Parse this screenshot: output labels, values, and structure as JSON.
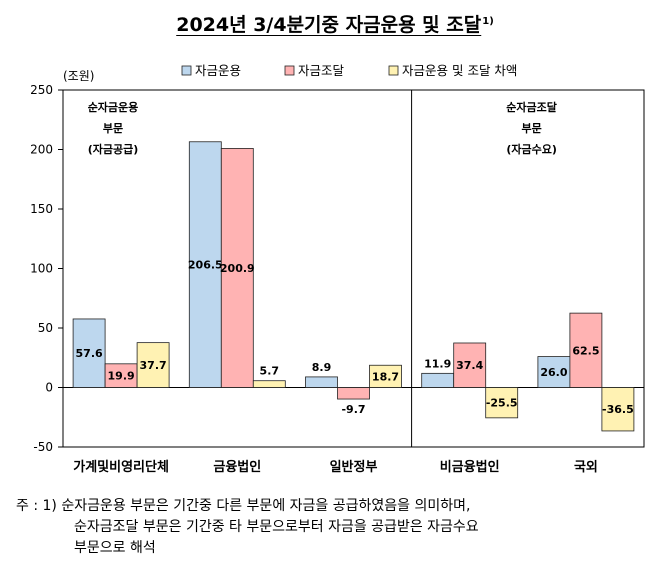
{
  "title": "2024년 3/4분기중 자금운용 및 조달",
  "title_sup": "1)",
  "chart_data": {
    "type": "bar",
    "categories": [
      "가계및비영리단체",
      "금융법인",
      "일반정부",
      "비금융법인",
      "국외"
    ],
    "series": [
      {
        "name": "자금운용",
        "values": [
          57.6,
          206.5,
          8.9,
          11.9,
          26.0
        ],
        "color": "#bdd7ee"
      },
      {
        "name": "자금조달",
        "values": [
          19.9,
          200.9,
          -9.7,
          37.4,
          62.5
        ],
        "color": "#ffb3b3"
      },
      {
        "name": "자금운용 및 조달 차액",
        "values": [
          37.7,
          5.7,
          18.7,
          -25.5,
          -36.5
        ],
        "color": "#fff2b3"
      }
    ],
    "value_labels": [
      [
        "57.6",
        "206.5",
        "8.9",
        "11.9",
        "26.0"
      ],
      [
        "19.9",
        "200.9",
        "-9.7",
        "37.4",
        "62.5"
      ],
      [
        "37.7",
        "5.7",
        "18.7",
        "-25.5",
        "-36.5"
      ]
    ],
    "ylim": [
      -50,
      250
    ],
    "yticks": [
      -50,
      0,
      50,
      100,
      150,
      200,
      250
    ],
    "ylabel": "(조원)",
    "legend": "top",
    "annotations": [
      {
        "lines": [
          "순자금운용",
          "부문",
          "(자금공급)"
        ]
      },
      {
        "lines": [
          "순자금조달",
          "부문",
          "(자금수요)"
        ]
      }
    ]
  },
  "note": {
    "lines": [
      "주 : 1) 순자금운용 부문은 기간중 다른 부문에 자금을 공급하였음을 의미하며,",
      "순자금조달 부문은 기간중 타 부문으로부터 자금을 공급받은 자금수요",
      "부문으로 해석"
    ]
  }
}
